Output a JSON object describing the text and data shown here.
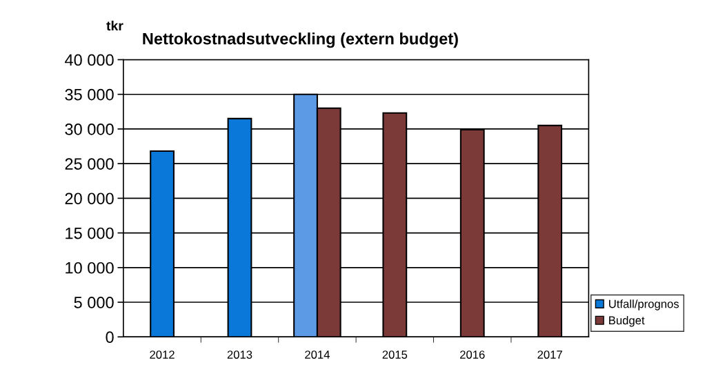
{
  "chart_data": {
    "type": "bar",
    "title": "Nettokostnadsutveckling (extern budget)",
    "ylabel": "tkr",
    "categories": [
      "2012",
      "2013",
      "2014",
      "2015",
      "2016",
      "2017"
    ],
    "series": [
      {
        "name": "Utfall/prognos",
        "color": "#0a78d8",
        "colors": [
          "#0a78d8",
          "#0a78d8",
          "#5d9ae6",
          "#0a78d8",
          "#0a78d8",
          "#0a78d8"
        ],
        "values": [
          26800,
          31500,
          35000,
          null,
          null,
          null
        ]
      },
      {
        "name": "Budget",
        "color": "#7b3a38",
        "values": [
          null,
          null,
          33000,
          32300,
          29900,
          30500
        ]
      }
    ],
    "ylim": [
      0,
      40000
    ],
    "yticks": [
      0,
      {
        "value": 5000,
        "label": "5 000"
      },
      {
        "value": 10000,
        "label": "10 000"
      },
      {
        "value": 15000,
        "label": "15 000"
      },
      {
        "value": 20000,
        "label": "20 000"
      },
      {
        "value": 25000,
        "label": "25 000"
      },
      {
        "value": 30000,
        "label": "30 000"
      },
      {
        "value": 35000,
        "label": "35 000"
      },
      {
        "value": 40000,
        "label": "40 000"
      }
    ],
    "grid": "y",
    "legend": "bottom right"
  }
}
